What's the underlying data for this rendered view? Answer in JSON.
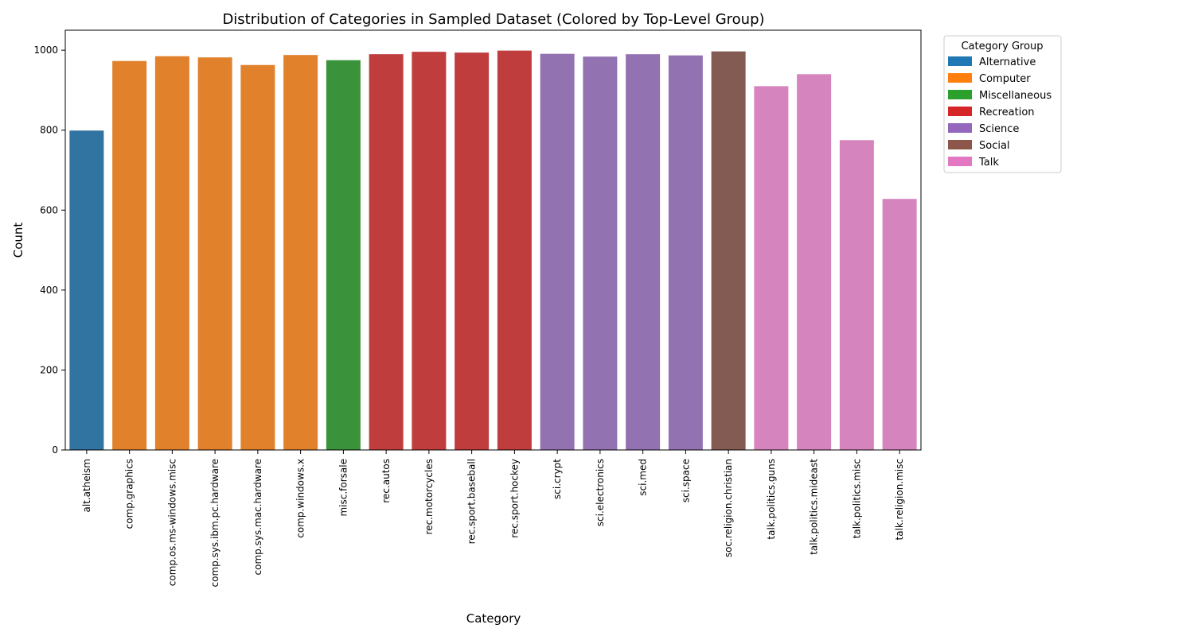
{
  "chart_data": {
    "type": "bar",
    "title": "Distribution of Categories in Sampled Dataset (Colored by Top-Level Group)",
    "xlabel": "Category",
    "ylabel": "Count",
    "ylim": [
      0,
      1050
    ],
    "yticks": [
      0,
      200,
      400,
      600,
      800,
      1000
    ],
    "grid": false,
    "legend_placement": "outside-top-right",
    "categories": [
      "alt.atheism",
      "comp.graphics",
      "comp.os.ms-windows.misc",
      "comp.sys.ibm.pc.hardware",
      "comp.sys.mac.hardware",
      "comp.windows.x",
      "misc.forsale",
      "rec.autos",
      "rec.motorcycles",
      "rec.sport.baseball",
      "rec.sport.hockey",
      "sci.crypt",
      "sci.electronics",
      "sci.med",
      "sci.space",
      "soc.religion.christian",
      "talk.politics.guns",
      "talk.politics.mideast",
      "talk.politics.misc",
      "talk.religion.misc"
    ],
    "values": [
      799,
      973,
      985,
      982,
      963,
      988,
      975,
      990,
      996,
      994,
      999,
      991,
      984,
      990,
      987,
      997,
      910,
      940,
      775,
      628
    ],
    "groups": [
      "Alternative",
      "Computer",
      "Computer",
      "Computer",
      "Computer",
      "Computer",
      "Miscellaneous",
      "Recreation",
      "Recreation",
      "Recreation",
      "Recreation",
      "Science",
      "Science",
      "Science",
      "Science",
      "Social",
      "Talk",
      "Talk",
      "Talk",
      "Talk"
    ],
    "legend": {
      "title": "Category Group",
      "entries": [
        {
          "name": "Alternative",
          "color": "#1f77b4",
          "bar_color": "#3274a1"
        },
        {
          "name": "Computer",
          "color": "#ff7f0e",
          "bar_color": "#e1812c"
        },
        {
          "name": "Miscellaneous",
          "color": "#2ca02c",
          "bar_color": "#3a923a"
        },
        {
          "name": "Recreation",
          "color": "#d62728",
          "bar_color": "#c03d3e"
        },
        {
          "name": "Science",
          "color": "#9467bd",
          "bar_color": "#9372b2"
        },
        {
          "name": "Social",
          "color": "#8c564b",
          "bar_color": "#845b53"
        },
        {
          "name": "Talk",
          "color": "#e377c2",
          "bar_color": "#d684bd"
        }
      ]
    }
  }
}
